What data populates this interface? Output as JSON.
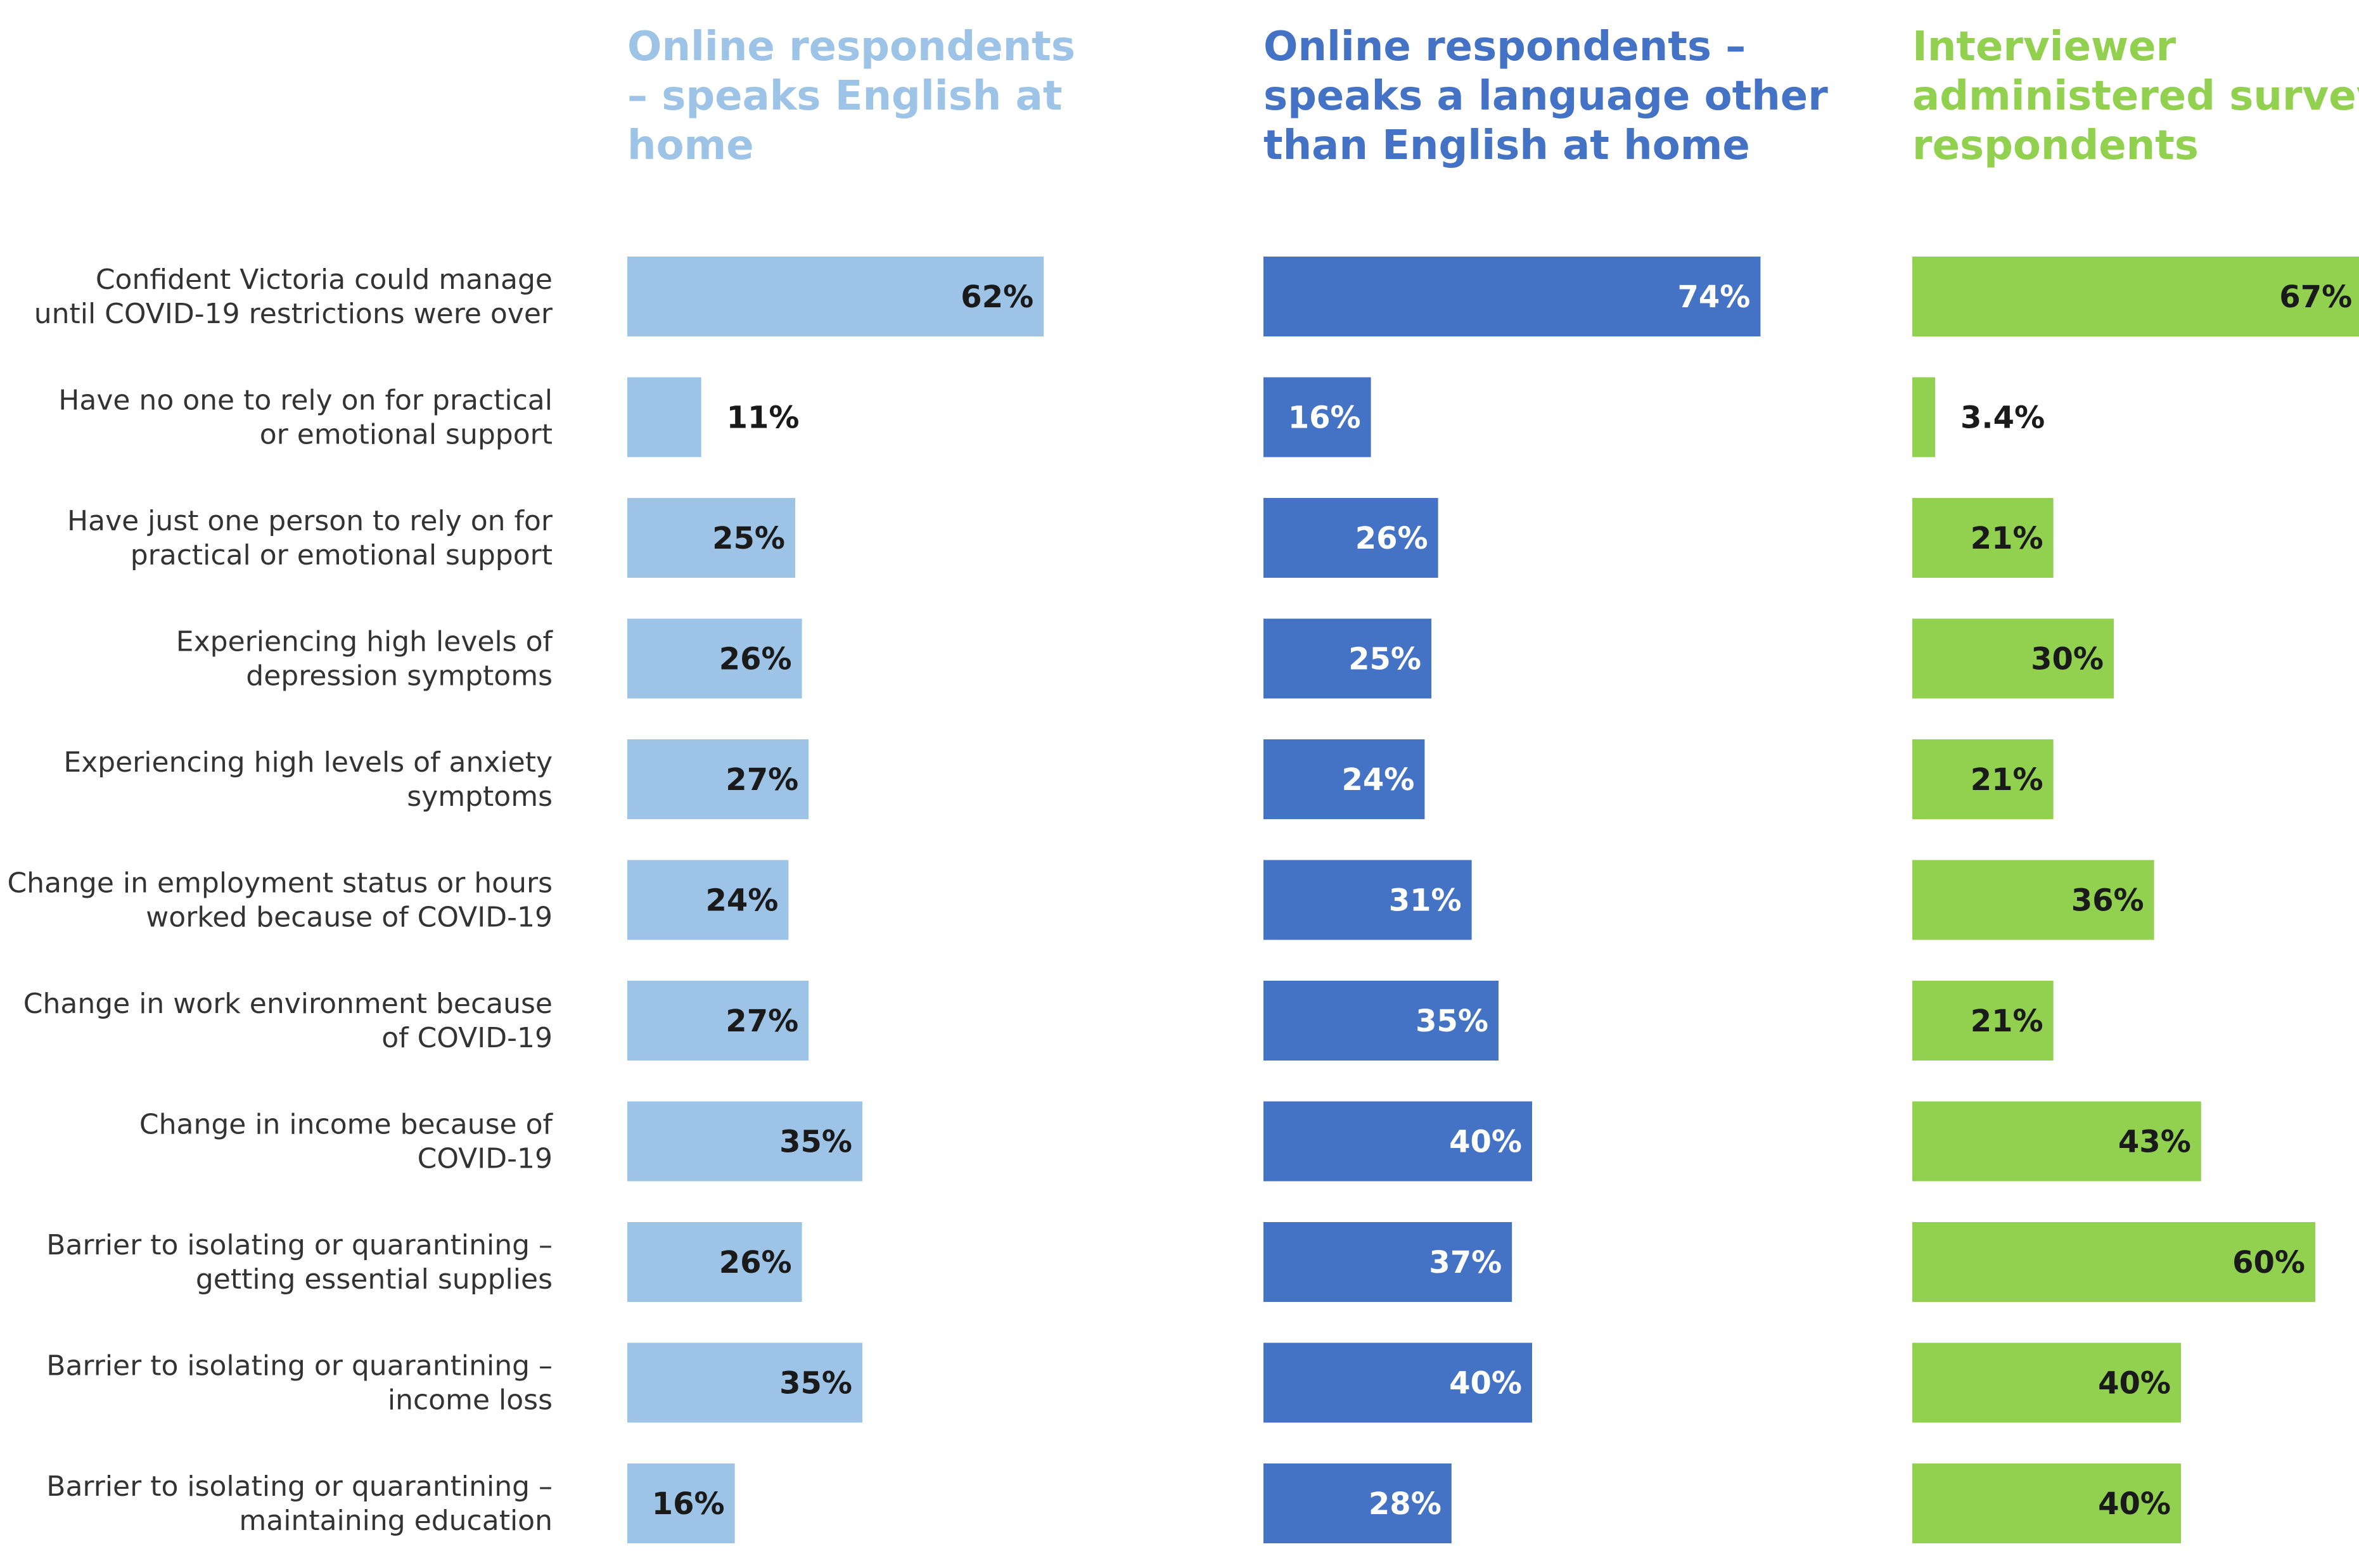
{
  "chart_data": {
    "type": "bar",
    "orientation": "horizontal",
    "categories": [
      [
        "Confident Victoria could manage",
        "until COVID-19 restrictions were over"
      ],
      [
        "Have no one to rely on for practical",
        "or emotional support"
      ],
      [
        "Have just one person to rely on for",
        "practical or emotional support"
      ],
      [
        "Experiencing high levels of",
        "depression symptoms"
      ],
      [
        "Experiencing high levels of anxiety",
        "symptoms"
      ],
      [
        "Change in employment status or hours",
        "worked because of COVID-19"
      ],
      [
        "Change in work environment because",
        "of COVID-19"
      ],
      [
        "Change in income because of",
        "COVID-19"
      ],
      [
        "Barrier to isolating or quarantining –",
        "getting essential supplies"
      ],
      [
        "Barrier to isolating or quarantining –",
        "income loss"
      ],
      [
        "Barrier to isolating or quarantining –",
        "maintaining education"
      ]
    ],
    "series": [
      {
        "name": [
          "Online respondents",
          "– speaks English at",
          "home"
        ],
        "color": "#9dc3e6",
        "title_color": "#9dc3e6",
        "values": [
          62,
          11,
          25,
          26,
          27,
          24,
          27,
          35,
          26,
          35,
          16
        ],
        "labels": [
          "62%",
          "11%",
          "25%",
          "26%",
          "27%",
          "24%",
          "27%",
          "35%",
          "26%",
          "35%",
          "16%"
        ],
        "label_color": "#1a1a1a"
      },
      {
        "name": [
          "Online respondents –",
          "speaks a language other",
          "than English at home"
        ],
        "color": "#4472c4",
        "title_color": "#4472c4",
        "values": [
          74,
          16,
          26,
          25,
          24,
          31,
          35,
          40,
          37,
          40,
          28
        ],
        "labels": [
          "74%",
          "16%",
          "26%",
          "25%",
          "24%",
          "31%",
          "35%",
          "40%",
          "37%",
          "40%",
          "28%"
        ],
        "label_color": "#ffffff"
      },
      {
        "name": [
          "Interviewer",
          "administered survey",
          "respondents"
        ],
        "color": "#92d050",
        "title_color": "#92d050",
        "values": [
          67,
          3.4,
          21,
          30,
          21,
          36,
          21,
          43,
          60,
          40,
          40
        ],
        "labels": [
          "67%",
          "3.4%",
          "21%",
          "30%",
          "21%",
          "36%",
          "21%",
          "43%",
          "60%",
          "40%",
          "40%"
        ],
        "label_color": "#1a1a1a"
      }
    ],
    "xlim": [
      0,
      100
    ],
    "grid": false,
    "legend": "column titles above each panel"
  }
}
